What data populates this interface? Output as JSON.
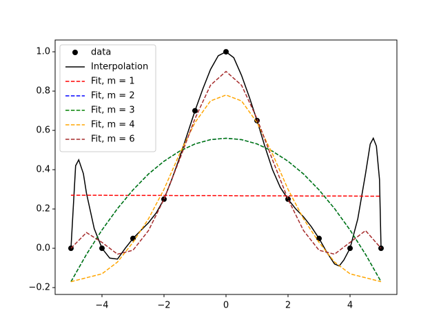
{
  "chart_data": {
    "type": "line",
    "xlim": [
      -5.511,
      5.511
    ],
    "ylim": [
      -0.235,
      1.06
    ],
    "xticks": [
      {
        "value": -4,
        "label": "−4"
      },
      {
        "value": -2,
        "label": "−2"
      },
      0,
      2,
      4
    ],
    "yticks": [
      {
        "value": -0.2,
        "label": "−0.2"
      },
      {
        "value": 0,
        "label": "0.0"
      },
      0.2,
      0.4,
      0.6,
      0.8,
      {
        "value": 1,
        "label": "1.0"
      }
    ],
    "legend": "upper left",
    "series": [
      {
        "name": "data",
        "color": "#000000",
        "line_style": "none",
        "marker": "o",
        "x": [
          -5,
          -4,
          -3,
          -2,
          -1,
          0,
          1,
          2,
          3,
          4,
          5
        ],
        "values": [
          0,
          0,
          0.05,
          0.25,
          0.7,
          1.0,
          0.65,
          0.25,
          0.05,
          0,
          0
        ]
      },
      {
        "name": "Interpolation",
        "color": "#000000",
        "line_style": "solid",
        "x": [
          -5,
          -4.9,
          -4.85,
          -4.75,
          -4.6,
          -4.5,
          -4.25,
          -4,
          -3.75,
          -3.5,
          -3.25,
          -3,
          -2.75,
          -2.5,
          -2.25,
          -2,
          -1.75,
          -1.5,
          -1.25,
          -1,
          -0.75,
          -0.5,
          -0.25,
          0,
          0.25,
          0.5,
          0.75,
          1,
          1.25,
          1.5,
          1.75,
          2,
          2.25,
          2.5,
          2.75,
          3,
          3.25,
          3.5,
          3.65,
          3.8,
          4,
          4.25,
          4.5,
          4.65,
          4.75,
          4.85,
          4.95,
          5
        ],
        "values": [
          0,
          0.28,
          0.42,
          0.45,
          0.38,
          0.28,
          0.1,
          0,
          -0.05,
          -0.055,
          0.0,
          0.05,
          0.09,
          0.13,
          0.18,
          0.25,
          0.35,
          0.46,
          0.58,
          0.7,
          0.81,
          0.91,
          0.98,
          1.0,
          0.97,
          0.88,
          0.77,
          0.65,
          0.52,
          0.4,
          0.31,
          0.25,
          0.2,
          0.16,
          0.11,
          0.05,
          -0.02,
          -0.08,
          -0.09,
          -0.06,
          0,
          0.15,
          0.38,
          0.53,
          0.56,
          0.52,
          0.35,
          0
        ]
      },
      {
        "name": "Fit, m = 1",
        "color": "#ff0000",
        "line_style": "dashed",
        "x": [
          -5,
          -4.5,
          -4,
          -3.5,
          -3,
          -2.5,
          -2,
          -1.5,
          -1,
          -0.5,
          0,
          0.5,
          1,
          1.5,
          2,
          2.5,
          3,
          3.5,
          4,
          4.5,
          5
        ],
        "values": [
          0.27,
          0.27,
          0.27,
          0.269,
          0.269,
          0.269,
          0.269,
          0.268,
          0.268,
          0.268,
          0.268,
          0.267,
          0.267,
          0.267,
          0.267,
          0.266,
          0.266,
          0.266,
          0.266,
          0.265,
          0.265
        ]
      },
      {
        "name": "Fit, m = 2",
        "color": "#0000ff",
        "line_style": "dashed",
        "x": [
          -5,
          -4.5,
          -4,
          -3.5,
          -3,
          -2.5,
          -2,
          -1.5,
          -1,
          -0.5,
          0,
          0.5,
          1,
          1.5,
          2,
          2.5,
          3,
          3.5,
          4,
          4.5,
          5
        ],
        "values": [
          -0.17,
          -0.031,
          0.093,
          0.202,
          0.297,
          0.378,
          0.443,
          0.494,
          0.531,
          0.553,
          0.56,
          0.553,
          0.531,
          0.494,
          0.443,
          0.378,
          0.297,
          0.202,
          0.093,
          -0.031,
          -0.17
        ]
      },
      {
        "name": "Fit, m = 3",
        "color": "#008000",
        "line_style": "dashed",
        "x": [
          -5,
          -4.5,
          -4,
          -3.5,
          -3,
          -2.5,
          -2,
          -1.5,
          -1,
          -0.5,
          0,
          0.5,
          1,
          1.5,
          2,
          2.5,
          3,
          3.5,
          4,
          4.5,
          5
        ],
        "values": [
          -0.17,
          -0.031,
          0.093,
          0.202,
          0.297,
          0.378,
          0.443,
          0.494,
          0.531,
          0.553,
          0.56,
          0.553,
          0.531,
          0.494,
          0.443,
          0.378,
          0.297,
          0.202,
          0.093,
          -0.031,
          -0.17
        ]
      },
      {
        "name": "Fit, m = 4",
        "color": "#ffa500",
        "line_style": "dashed",
        "x": [
          -5,
          -4.5,
          -4,
          -3.5,
          -3,
          -2.5,
          -2,
          -1.5,
          -1,
          -0.5,
          0,
          0.5,
          1,
          1.5,
          2,
          2.5,
          3,
          3.5,
          4,
          4.5,
          5
        ],
        "values": [
          -0.17,
          -0.15,
          -0.13,
          -0.07,
          0.03,
          0.15,
          0.3,
          0.48,
          0.64,
          0.75,
          0.78,
          0.75,
          0.64,
          0.48,
          0.3,
          0.15,
          0.03,
          -0.07,
          -0.13,
          -0.15,
          -0.17
        ]
      },
      {
        "name": "Fit, m = 6",
        "color": "#a52a2a",
        "line_style": "dashed",
        "x": [
          -5,
          -4.5,
          -4,
          -3.5,
          -3,
          -2.5,
          -2,
          -1.5,
          -1,
          -0.5,
          0,
          0.5,
          1,
          1.5,
          2,
          2.5,
          3,
          3.5,
          4,
          4.5,
          5
        ],
        "values": [
          0.0,
          0.08,
          0.03,
          -0.03,
          -0.01,
          0.09,
          0.25,
          0.45,
          0.66,
          0.83,
          0.9,
          0.83,
          0.66,
          0.45,
          0.25,
          0.09,
          -0.01,
          -0.03,
          0.03,
          0.09,
          0.0
        ]
      }
    ]
  }
}
